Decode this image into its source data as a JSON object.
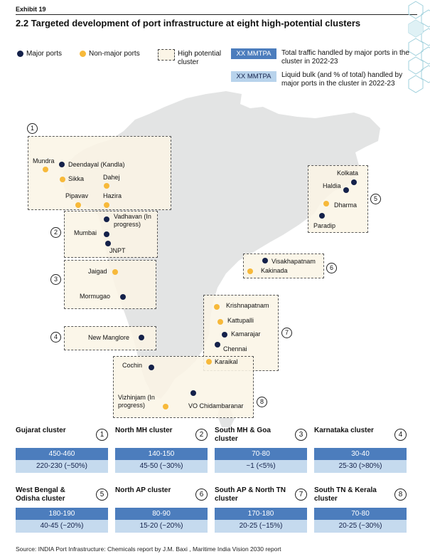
{
  "exhibit_label": "Exhibit 19",
  "title": "2.2 Targeted development of port infrastructure at eight high-potential clusters",
  "legend": {
    "major_ports": "Major ports",
    "non_major_ports": "Non-major ports",
    "high_potential": "High potential cluster",
    "tag_label": "XX MMTPA",
    "traffic_desc": "Total traffic handled by major ports in the cluster in 2022-23",
    "bulk_desc": "Liquid bulk (and % of total) handled by major ports in the cluster in 2022-23"
  },
  "colors": {
    "major": "#14214a",
    "non_major": "#f7b93a",
    "traffic_fill": "#4c7dbd",
    "bulk_fill": "#c5daee",
    "map_land": "#e3e4e4",
    "cluster_fill": "#fbf5e6"
  },
  "map": {
    "ports": [
      {
        "id": "mundra",
        "label": "Mundra",
        "type": "non_major"
      },
      {
        "id": "deendayal",
        "label": "Deendayal (Kandla)",
        "type": "major"
      },
      {
        "id": "sikka",
        "label": "Sikka",
        "type": "non_major"
      },
      {
        "id": "dahej",
        "label": "Dahej",
        "type": "non_major"
      },
      {
        "id": "pipavav",
        "label": "Pipavav",
        "type": "non_major"
      },
      {
        "id": "hazira",
        "label": "Hazira",
        "type": "non_major"
      },
      {
        "id": "vadhavan",
        "label": "Vadhavan (In progress)",
        "type": "major"
      },
      {
        "id": "mumbai",
        "label": "Mumbai",
        "type": "major"
      },
      {
        "id": "jnpt",
        "label": "JNPT",
        "type": "major"
      },
      {
        "id": "jaigad",
        "label": "Jaigad",
        "type": "non_major"
      },
      {
        "id": "mormugao",
        "label": "Mormugao",
        "type": "major"
      },
      {
        "id": "new_manglore",
        "label": "New Manglore",
        "type": "major"
      },
      {
        "id": "cochin",
        "label": "Cochin",
        "type": "major"
      },
      {
        "id": "vizhinjam",
        "label": "Vizhinjam (In progress)",
        "type": "non_major"
      },
      {
        "id": "vo_chidambaranar",
        "label": "VO Chidambaranar",
        "type": "major"
      },
      {
        "id": "karaikal",
        "label": "Karaikal",
        "type": "non_major"
      },
      {
        "id": "chennai",
        "label": "Chennai",
        "type": "major"
      },
      {
        "id": "kamarajar",
        "label": "Kamarajar",
        "type": "major"
      },
      {
        "id": "kattupalli",
        "label": "Kattupalli",
        "type": "non_major"
      },
      {
        "id": "krishnapatnam",
        "label": "Krishnapatnam",
        "type": "non_major"
      },
      {
        "id": "visakhapatnam",
        "label": "Visakhapatnam",
        "type": "major"
      },
      {
        "id": "kakinada",
        "label": "Kakinada",
        "type": "non_major"
      },
      {
        "id": "kolkata",
        "label": "Kolkata",
        "type": "major"
      },
      {
        "id": "haldia",
        "label": "Haldia",
        "type": "major"
      },
      {
        "id": "dharma",
        "label": "Dharma",
        "type": "non_major"
      },
      {
        "id": "paradip",
        "label": "Paradip",
        "type": "major"
      }
    ],
    "cluster_numbers": [
      "1",
      "2",
      "3",
      "4",
      "5",
      "6",
      "7",
      "8"
    ]
  },
  "clusters": [
    {
      "num": "1",
      "name": "Gujarat cluster",
      "traffic": "450-460",
      "bulk": "220-230 (~50%)"
    },
    {
      "num": "2",
      "name": "North MH cluster",
      "traffic": "140-150",
      "bulk": "45-50 (~30%)"
    },
    {
      "num": "3",
      "name": "South MH & Goa cluster",
      "traffic": "70-80",
      "bulk": "~1 (<5%)"
    },
    {
      "num": "4",
      "name": "Karnataka cluster",
      "traffic": "30-40",
      "bulk": "25-30 (>80%)"
    },
    {
      "num": "5",
      "name": "West Bengal & Odisha cluster",
      "traffic": "180-190",
      "bulk": "40-45 (~20%)"
    },
    {
      "num": "6",
      "name": "North AP cluster",
      "traffic": "80-90",
      "bulk": "15-20 (~20%)"
    },
    {
      "num": "7",
      "name": "South AP & North TN cluster",
      "traffic": "170-180",
      "bulk": "20-25 (~15%)"
    },
    {
      "num": "8",
      "name": "South TN & Kerala cluster",
      "traffic": "70-80",
      "bulk": "20-25 (~30%)"
    }
  ],
  "source": "Source: INDIA Port Infrastructure: Chemicals report by J.M. Baxi , Maritime India Vision 2030 report"
}
